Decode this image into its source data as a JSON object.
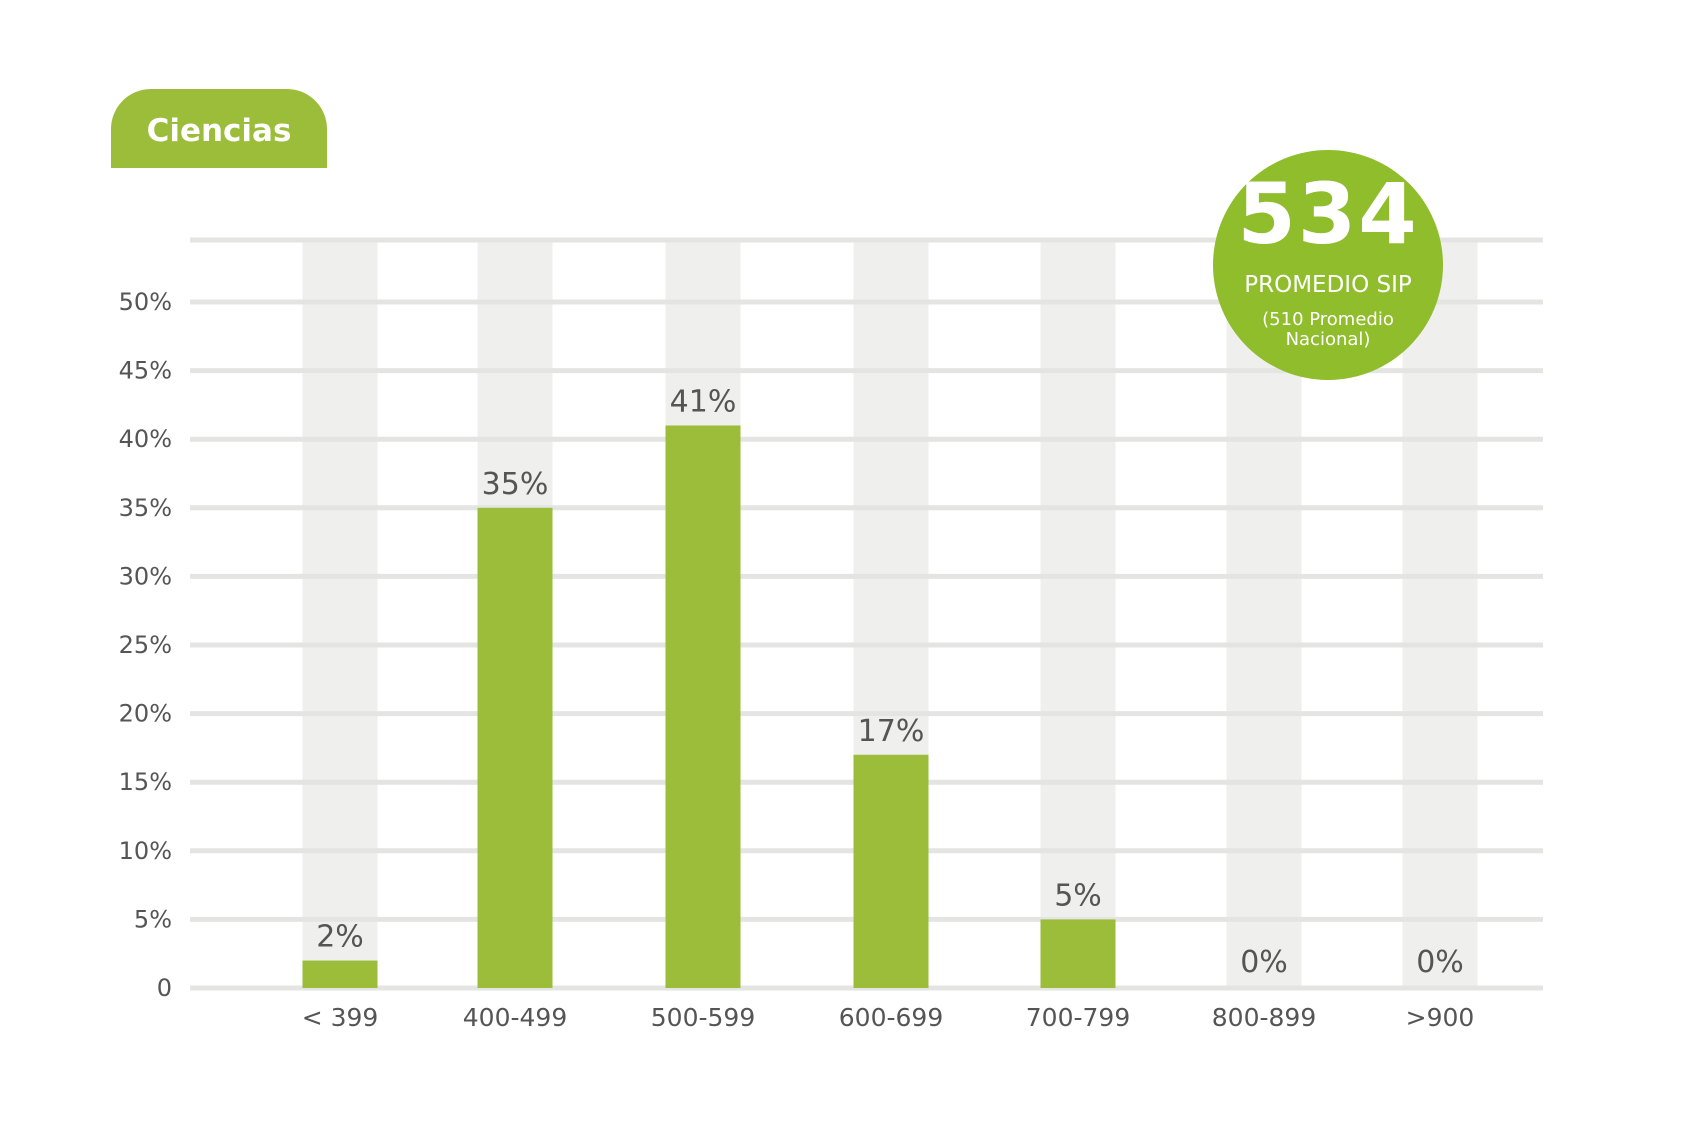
{
  "chart_data": {
    "type": "bar",
    "title": "Ciencias",
    "categories": [
      "< 399",
      "400-499",
      "500-599",
      "600-699",
      "700-799",
      "800-899",
      ">900"
    ],
    "values": [
      2,
      35,
      41,
      17,
      5,
      0,
      0
    ],
    "data_labels": [
      "2%",
      "35%",
      "41%",
      "17%",
      "5%",
      "0%",
      "0%"
    ],
    "ylim": [
      0,
      55
    ],
    "yticks": [
      0,
      5,
      10,
      15,
      20,
      25,
      30,
      35,
      40,
      45,
      50
    ],
    "ytick_labels": [
      "0",
      "5%",
      "10%",
      "15%",
      "20%",
      "25%",
      "30%",
      "35%",
      "40%",
      "45%",
      "50%"
    ],
    "xlabel": "",
    "ylabel": "",
    "grid": true,
    "legend": "none"
  },
  "badge": {
    "score": "534",
    "label": "PROMEDIO SIP",
    "note": "(510 Promedio Nacional)"
  },
  "colors": {
    "bar": "#9bbd3a",
    "column_background": "#efefed",
    "gridline": "#e4e4e2",
    "badge": "#8fbd2b",
    "text": "#555555"
  }
}
